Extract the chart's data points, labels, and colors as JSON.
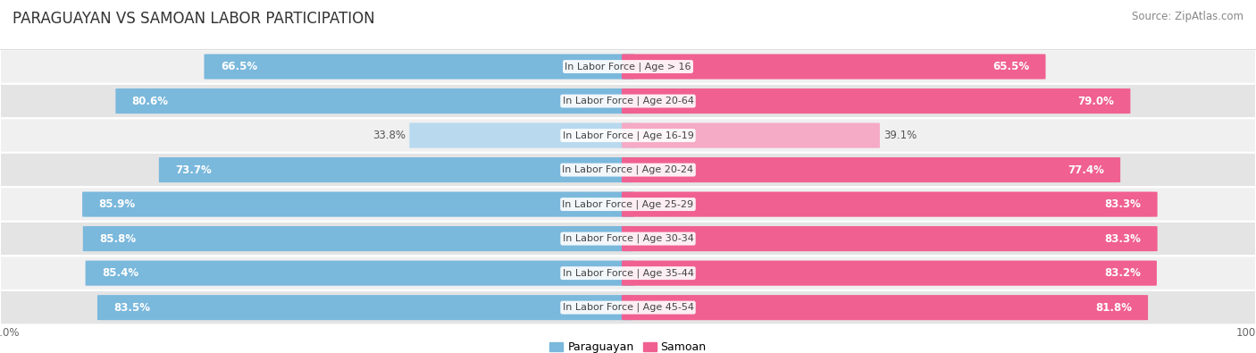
{
  "title": "PARAGUAYAN VS SAMOAN LABOR PARTICIPATION",
  "source": "Source: ZipAtlas.com",
  "categories": [
    "In Labor Force | Age > 16",
    "In Labor Force | Age 20-64",
    "In Labor Force | Age 16-19",
    "In Labor Force | Age 20-24",
    "In Labor Force | Age 25-29",
    "In Labor Force | Age 30-34",
    "In Labor Force | Age 35-44",
    "In Labor Force | Age 45-54"
  ],
  "paraguayan_values": [
    66.5,
    80.6,
    33.8,
    73.7,
    85.9,
    85.8,
    85.4,
    83.5
  ],
  "samoan_values": [
    65.5,
    79.0,
    39.1,
    77.4,
    83.3,
    83.3,
    83.2,
    81.8
  ],
  "paraguayan_color": "#7ab8dc",
  "paraguayan_color_light": "#b8d9ee",
  "samoan_color": "#f06090",
  "samoan_color_light": "#f5aac5",
  "row_bg_colors": [
    "#f0f0f0",
    "#e4e4e4"
  ],
  "separator_color": "#ffffff",
  "max_value": 100.0,
  "legend_paraguayan": "Paraguayan",
  "legend_samoan": "Samoan",
  "bar_height": 0.72,
  "label_fontsize": 8.5,
  "title_fontsize": 12,
  "source_fontsize": 8.5,
  "category_fontsize": 8.0,
  "axis_label_fontsize": 8.5
}
